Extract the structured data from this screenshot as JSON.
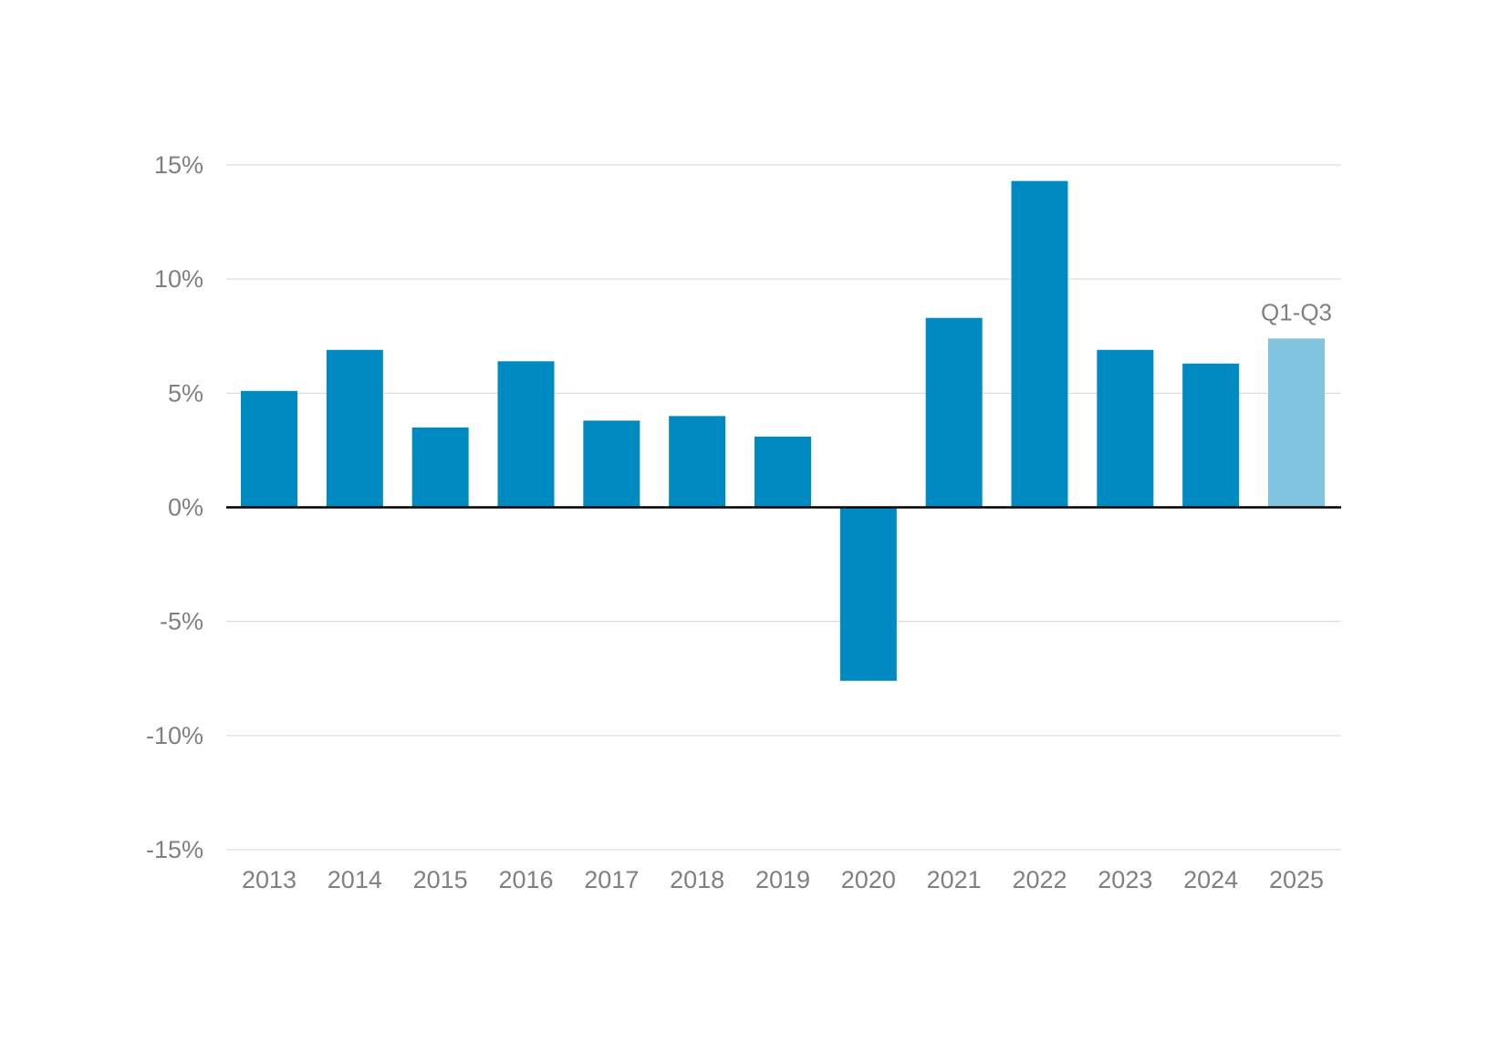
{
  "chart_data": {
    "type": "bar",
    "categories": [
      "2013",
      "2014",
      "2015",
      "2016",
      "2017",
      "2018",
      "2019",
      "2020",
      "2021",
      "2022",
      "2023",
      "2024",
      "2025"
    ],
    "values": [
      5.1,
      6.9,
      3.5,
      6.4,
      3.8,
      4.0,
      3.1,
      -7.6,
      8.3,
      14.3,
      6.9,
      6.3,
      7.4
    ],
    "y_ticks": [
      15,
      10,
      5,
      0,
      -5,
      -10,
      -15
    ],
    "y_tick_labels": [
      "15%",
      "10%",
      "5%",
      "0%",
      "-5%",
      "-10%",
      "-15%"
    ],
    "ylim": [
      -15,
      15
    ],
    "grid": true,
    "title": "",
    "xlabel": "",
    "ylabel": "",
    "annotations": [
      {
        "category": "2025",
        "text": "Q1-Q3"
      }
    ],
    "colors": {
      "bar": "#008ac2",
      "bar_partial_year": "#80c4e0",
      "gridline": "#d9d9d9",
      "zero_line": "#000000",
      "tick_text": "#808080"
    },
    "partial_categories": [
      "2025"
    ]
  }
}
